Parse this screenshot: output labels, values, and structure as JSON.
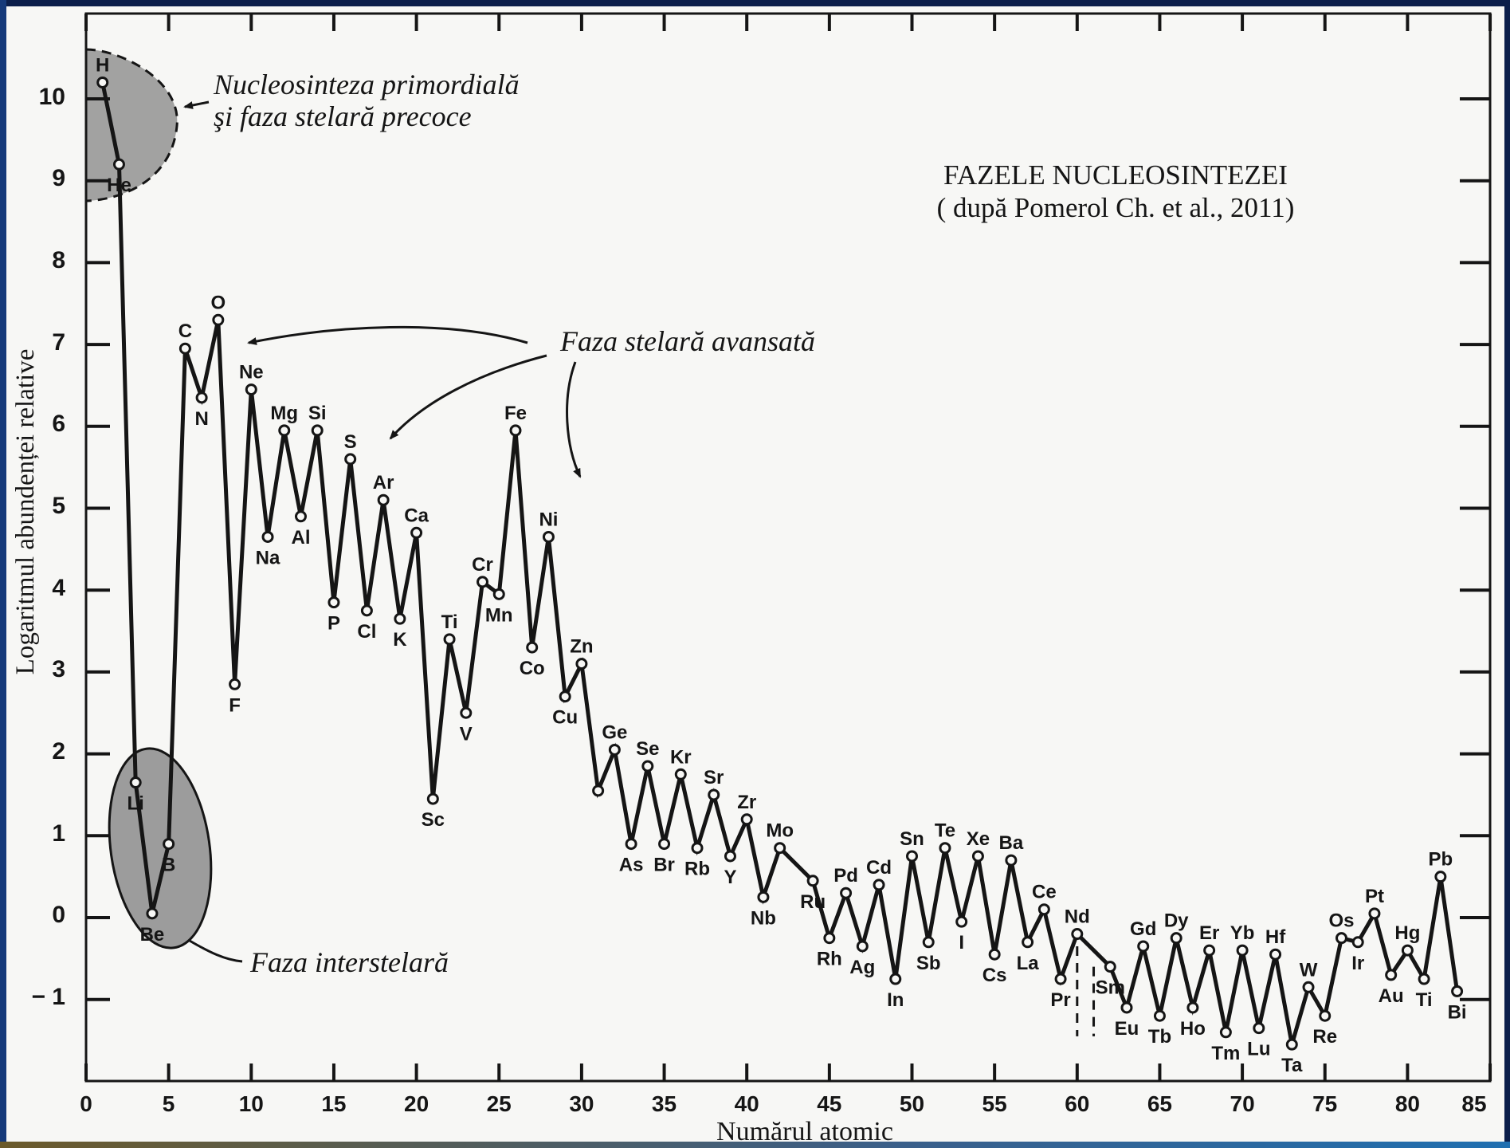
{
  "chart_data": {
    "type": "line",
    "title": "FAZELE NUCLEOSINTEZEI",
    "subtitle": "( după Pomerol Ch. et al., 2011)",
    "xlabel": "Numărul atomic",
    "ylabel": "Logaritmul abundenței relative",
    "xlim": [
      0,
      85
    ],
    "ylim": [
      -2,
      11
    ],
    "xticks": [
      "0",
      "5",
      "10",
      "15",
      "20",
      "25",
      "30",
      "35",
      "40",
      "45",
      "50",
      "55",
      "60",
      "65",
      "70",
      "75",
      "80",
      "85"
    ],
    "yticks": [
      "10",
      "9",
      "8",
      "7",
      "6",
      "5",
      "4",
      "3",
      "2",
      "1",
      "0",
      "− 1"
    ],
    "series": [
      {
        "points": [
          {
            "x": 1,
            "y": 10.2,
            "label": "H"
          },
          {
            "x": 2,
            "y": 9.2,
            "label": "He"
          },
          {
            "x": 3,
            "y": 1.65,
            "label": "Li"
          },
          {
            "x": 4,
            "y": 0.05,
            "label": "Be"
          },
          {
            "x": 5,
            "y": 0.9,
            "label": "B"
          },
          {
            "x": 6,
            "y": 6.95,
            "label": "C"
          },
          {
            "x": 7,
            "y": 6.35,
            "label": "N"
          },
          {
            "x": 8,
            "y": 7.3,
            "label": "O"
          },
          {
            "x": 9,
            "y": 2.85,
            "label": "F"
          },
          {
            "x": 10,
            "y": 6.45,
            "label": "Ne"
          },
          {
            "x": 11,
            "y": 4.65,
            "label": "Na"
          },
          {
            "x": 12,
            "y": 5.95,
            "label": "Mg"
          },
          {
            "x": 13,
            "y": 4.9,
            "label": "Al"
          },
          {
            "x": 14,
            "y": 5.95,
            "label": "Si"
          },
          {
            "x": 15,
            "y": 3.85,
            "label": "P"
          },
          {
            "x": 16,
            "y": 5.6,
            "label": "S"
          },
          {
            "x": 17,
            "y": 3.75,
            "label": "Cl"
          },
          {
            "x": 18,
            "y": 5.1,
            "label": "Ar"
          },
          {
            "x": 19,
            "y": 3.65,
            "label": "K"
          },
          {
            "x": 20,
            "y": 4.7,
            "label": "Ca"
          },
          {
            "x": 21,
            "y": 1.45,
            "label": "Sc"
          },
          {
            "x": 22,
            "y": 3.4,
            "label": "Ti"
          },
          {
            "x": 23,
            "y": 2.5,
            "label": "V"
          },
          {
            "x": 24,
            "y": 4.1,
            "label": "Cr"
          },
          {
            "x": 25,
            "y": 3.95,
            "label": "Mn"
          },
          {
            "x": 26,
            "y": 5.95,
            "label": "Fe"
          },
          {
            "x": 27,
            "y": 3.3,
            "label": "Co"
          },
          {
            "x": 28,
            "y": 4.65,
            "label": "Ni"
          },
          {
            "x": 29,
            "y": 2.7,
            "label": "Cu"
          },
          {
            "x": 30,
            "y": 3.1,
            "label": "Zn"
          },
          {
            "x": 31,
            "y": 1.55,
            "label": ""
          },
          {
            "x": 32,
            "y": 2.05,
            "label": "Ge"
          },
          {
            "x": 33,
            "y": 0.9,
            "label": "As"
          },
          {
            "x": 34,
            "y": 1.85,
            "label": "Se"
          },
          {
            "x": 35,
            "y": 0.9,
            "label": "Br"
          },
          {
            "x": 36,
            "y": 1.75,
            "label": "Kr"
          },
          {
            "x": 37,
            "y": 0.85,
            "label": "Rb"
          },
          {
            "x": 38,
            "y": 1.5,
            "label": "Sr"
          },
          {
            "x": 39,
            "y": 0.75,
            "label": "Y"
          },
          {
            "x": 40,
            "y": 1.2,
            "label": "Zr"
          },
          {
            "x": 41,
            "y": 0.25,
            "label": "Nb"
          },
          {
            "x": 42,
            "y": 0.85,
            "label": "Mo"
          },
          {
            "x": 44,
            "y": 0.45,
            "label": "Ru"
          },
          {
            "x": 45,
            "y": -0.25,
            "label": "Rh"
          },
          {
            "x": 46,
            "y": 0.3,
            "label": "Pd"
          },
          {
            "x": 47,
            "y": -0.35,
            "label": "Ag"
          },
          {
            "x": 48,
            "y": 0.4,
            "label": "Cd"
          },
          {
            "x": 49,
            "y": -0.75,
            "label": "In"
          },
          {
            "x": 50,
            "y": 0.75,
            "label": "Sn"
          },
          {
            "x": 51,
            "y": -0.3,
            "label": "Sb"
          },
          {
            "x": 52,
            "y": 0.85,
            "label": "Te"
          },
          {
            "x": 53,
            "y": -0.05,
            "label": "I"
          },
          {
            "x": 54,
            "y": 0.75,
            "label": "Xe"
          },
          {
            "x": 55,
            "y": -0.45,
            "label": "Cs"
          },
          {
            "x": 56,
            "y": 0.7,
            "label": "Ba"
          },
          {
            "x": 57,
            "y": -0.3,
            "label": "La"
          },
          {
            "x": 58,
            "y": 0.1,
            "label": "Ce"
          },
          {
            "x": 59,
            "y": -0.75,
            "label": "Pr"
          },
          {
            "x": 60,
            "y": -0.2,
            "label": "Nd"
          },
          {
            "x": 62,
            "y": -0.6,
            "label": "Sm"
          },
          {
            "x": 63,
            "y": -1.1,
            "label": "Eu"
          },
          {
            "x": 64,
            "y": -0.35,
            "label": "Gd"
          },
          {
            "x": 65,
            "y": -1.2,
            "label": "Tb"
          },
          {
            "x": 66,
            "y": -0.25,
            "label": "Dy"
          },
          {
            "x": 67,
            "y": -1.1,
            "label": "Ho"
          },
          {
            "x": 68,
            "y": -0.4,
            "label": "Er"
          },
          {
            "x": 69,
            "y": -1.4,
            "label": "Tm"
          },
          {
            "x": 70,
            "y": -0.4,
            "label": "Yb"
          },
          {
            "x": 71,
            "y": -1.35,
            "label": "Lu"
          },
          {
            "x": 72,
            "y": -0.45,
            "label": "Hf"
          },
          {
            "x": 73,
            "y": -1.55,
            "label": "Ta"
          },
          {
            "x": 74,
            "y": -0.85,
            "label": "W"
          },
          {
            "x": 75,
            "y": -1.2,
            "label": "Re"
          },
          {
            "x": 76,
            "y": -0.25,
            "label": "Os"
          },
          {
            "x": 77,
            "y": -0.3,
            "label": "Ir"
          },
          {
            "x": 78,
            "y": 0.05,
            "label": "Pt"
          },
          {
            "x": 79,
            "y": -0.7,
            "label": "Au"
          },
          {
            "x": 80,
            "y": -0.4,
            "label": "Hg"
          },
          {
            "x": 81,
            "y": -0.75,
            "label": "Ti"
          },
          {
            "x": 82,
            "y": 0.5,
            "label": "Pb"
          },
          {
            "x": 83,
            "y": -0.9,
            "label": "Bi"
          }
        ]
      }
    ],
    "dashed_segments": [
      {
        "x": 60,
        "y_from": -0.35,
        "y_to": -1.45
      },
      {
        "x": 61,
        "y_from": -0.6,
        "y_to": -1.45
      }
    ],
    "annotations": {
      "primordial_line1": "Nucleosinteza primordială",
      "primordial_line2": "şi faza stelară precoce",
      "advanced": "Faza stelară avansată",
      "interstellar": "Faza interstelară"
    },
    "grid": false,
    "legend": "none"
  },
  "colors": {
    "ink": "#151515",
    "paper": "#f7f7f5",
    "region_fill": "#8c8c8c",
    "frame": "#0b1e4a"
  }
}
